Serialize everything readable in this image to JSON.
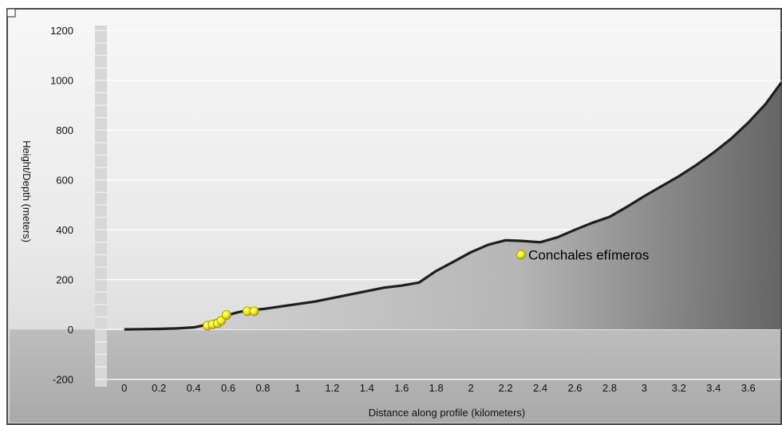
{
  "chart_data": {
    "type": "area",
    "title": "",
    "xlabel": "Distance along profile (kilometers)",
    "ylabel": "Height/Depth (meters)",
    "xlim": [
      -0.1,
      3.79
    ],
    "ylim": [
      -230,
      1220
    ],
    "x_ticks": [
      0,
      0.2,
      0.4,
      0.6,
      0.8,
      1,
      1.2,
      1.4,
      1.6,
      1.8,
      2,
      2.2,
      2.4,
      2.6,
      2.8,
      3,
      3.2,
      3.4,
      3.6
    ],
    "y_ticks": [
      -200,
      0,
      200,
      400,
      600,
      800,
      1000,
      1200
    ],
    "grid": true,
    "profile": {
      "x": [
        0,
        0.1,
        0.2,
        0.3,
        0.4,
        0.45,
        0.5,
        0.55,
        0.6,
        0.65,
        0.7,
        0.8,
        0.9,
        1.0,
        1.1,
        1.2,
        1.3,
        1.4,
        1.5,
        1.6,
        1.7,
        1.8,
        1.9,
        2.0,
        2.1,
        2.2,
        2.3,
        2.4,
        2.5,
        2.6,
        2.7,
        2.8,
        2.9,
        3.0,
        3.1,
        3.2,
        3.3,
        3.4,
        3.5,
        3.6,
        3.7,
        3.79
      ],
      "y": [
        0,
        1,
        2,
        4,
        8,
        15,
        28,
        42,
        58,
        68,
        75,
        82,
        92,
        102,
        112,
        126,
        140,
        154,
        168,
        176,
        188,
        235,
        272,
        310,
        340,
        358,
        355,
        350,
        370,
        400,
        428,
        452,
        492,
        535,
        575,
        615,
        660,
        710,
        765,
        830,
        905,
        990
      ]
    },
    "points": {
      "x": [
        0.48,
        0.51,
        0.54,
        0.56,
        0.59,
        0.71,
        0.75,
        2.29
      ],
      "y": [
        15,
        20,
        25,
        35,
        58,
        73,
        73,
        300
      ]
    },
    "annotations": [
      {
        "text": "Conchales efímeros",
        "x": 2.29,
        "y": 300
      }
    ],
    "colors": {
      "line": "#1e1e1e",
      "point": "#f2f200",
      "area_top": "#bdbdbd",
      "area_bottom": "#5a5a5a"
    }
  }
}
